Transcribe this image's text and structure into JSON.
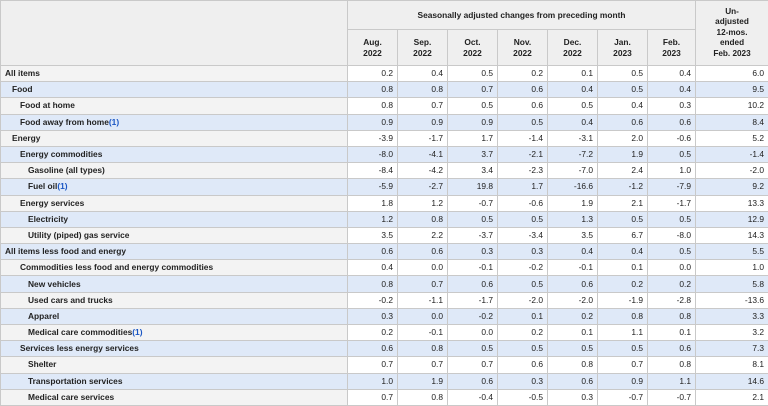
{
  "header": {
    "group_title": "Seasonally adjusted changes from preceding month",
    "months": [
      {
        "month": "Aug.",
        "year": "2022"
      },
      {
        "month": "Sep.",
        "year": "2022"
      },
      {
        "month": "Oct.",
        "year": "2022"
      },
      {
        "month": "Nov.",
        "year": "2022"
      },
      {
        "month": "Dec.",
        "year": "2022"
      },
      {
        "month": "Jan.",
        "year": "2023"
      },
      {
        "month": "Feb.",
        "year": "2023"
      }
    ],
    "unadjusted_lines": [
      "Un-",
      "adjusted",
      "12-mos.",
      "ended",
      "Feb. 2023"
    ]
  },
  "rows": [
    {
      "label": "All items",
      "footnote": "",
      "indent": 0,
      "values": [
        "0.2",
        "0.4",
        "0.5",
        "0.2",
        "0.1",
        "0.5",
        "0.4"
      ],
      "unadjusted": "6.0"
    },
    {
      "label": "Food",
      "footnote": "",
      "indent": 1,
      "values": [
        "0.8",
        "0.8",
        "0.7",
        "0.6",
        "0.4",
        "0.5",
        "0.4"
      ],
      "unadjusted": "9.5"
    },
    {
      "label": "Food at home",
      "footnote": "",
      "indent": 2,
      "values": [
        "0.8",
        "0.7",
        "0.5",
        "0.6",
        "0.5",
        "0.4",
        "0.3"
      ],
      "unadjusted": "10.2"
    },
    {
      "label": "Food away from home",
      "footnote": "(1)",
      "indent": 2,
      "values": [
        "0.9",
        "0.9",
        "0.9",
        "0.5",
        "0.4",
        "0.6",
        "0.6"
      ],
      "unadjusted": "8.4"
    },
    {
      "label": "Energy",
      "footnote": "",
      "indent": 1,
      "values": [
        "-3.9",
        "-1.7",
        "1.7",
        "-1.4",
        "-3.1",
        "2.0",
        "-0.6"
      ],
      "unadjusted": "5.2"
    },
    {
      "label": "Energy commodities",
      "footnote": "",
      "indent": 2,
      "values": [
        "-8.0",
        "-4.1",
        "3.7",
        "-2.1",
        "-7.2",
        "1.9",
        "0.5"
      ],
      "unadjusted": "-1.4"
    },
    {
      "label": "Gasoline (all types)",
      "footnote": "",
      "indent": 3,
      "values": [
        "-8.4",
        "-4.2",
        "3.4",
        "-2.3",
        "-7.0",
        "2.4",
        "1.0"
      ],
      "unadjusted": "-2.0"
    },
    {
      "label": "Fuel oil",
      "footnote": "(1)",
      "indent": 3,
      "values": [
        "-5.9",
        "-2.7",
        "19.8",
        "1.7",
        "-16.6",
        "-1.2",
        "-7.9"
      ],
      "unadjusted": "9.2"
    },
    {
      "label": "Energy services",
      "footnote": "",
      "indent": 2,
      "values": [
        "1.8",
        "1.2",
        "-0.7",
        "-0.6",
        "1.9",
        "2.1",
        "-1.7"
      ],
      "unadjusted": "13.3"
    },
    {
      "label": "Electricity",
      "footnote": "",
      "indent": 3,
      "values": [
        "1.2",
        "0.8",
        "0.5",
        "0.5",
        "1.3",
        "0.5",
        "0.5"
      ],
      "unadjusted": "12.9"
    },
    {
      "label": "Utility (piped) gas service",
      "footnote": "",
      "indent": 3,
      "values": [
        "3.5",
        "2.2",
        "-3.7",
        "-3.4",
        "3.5",
        "6.7",
        "-8.0"
      ],
      "unadjusted": "14.3"
    },
    {
      "label": "All items less food and energy",
      "footnote": "",
      "indent": 0,
      "values": [
        "0.6",
        "0.6",
        "0.3",
        "0.3",
        "0.4",
        "0.4",
        "0.5"
      ],
      "unadjusted": "5.5"
    },
    {
      "label": "Commodities less food and energy commodities",
      "footnote": "",
      "indent": 2,
      "values": [
        "0.4",
        "0.0",
        "-0.1",
        "-0.2",
        "-0.1",
        "0.1",
        "0.0"
      ],
      "unadjusted": "1.0"
    },
    {
      "label": "New vehicles",
      "footnote": "",
      "indent": 3,
      "values": [
        "0.8",
        "0.7",
        "0.6",
        "0.5",
        "0.6",
        "0.2",
        "0.2"
      ],
      "unadjusted": "5.8"
    },
    {
      "label": "Used cars and trucks",
      "footnote": "",
      "indent": 3,
      "values": [
        "-0.2",
        "-1.1",
        "-1.7",
        "-2.0",
        "-2.0",
        "-1.9",
        "-2.8"
      ],
      "unadjusted": "-13.6"
    },
    {
      "label": "Apparel",
      "footnote": "",
      "indent": 3,
      "values": [
        "0.3",
        "0.0",
        "-0.2",
        "0.1",
        "0.2",
        "0.8",
        "0.8"
      ],
      "unadjusted": "3.3"
    },
    {
      "label": "Medical care commodities",
      "footnote": "(1)",
      "indent": 3,
      "values": [
        "0.2",
        "-0.1",
        "0.0",
        "0.2",
        "0.1",
        "1.1",
        "0.1"
      ],
      "unadjusted": "3.2"
    },
    {
      "label": "Services less energy services",
      "footnote": "",
      "indent": 2,
      "values": [
        "0.6",
        "0.8",
        "0.5",
        "0.5",
        "0.5",
        "0.5",
        "0.6"
      ],
      "unadjusted": "7.3"
    },
    {
      "label": "Shelter",
      "footnote": "",
      "indent": 3,
      "values": [
        "0.7",
        "0.7",
        "0.7",
        "0.6",
        "0.8",
        "0.7",
        "0.8"
      ],
      "unadjusted": "8.1"
    },
    {
      "label": "Transportation services",
      "footnote": "",
      "indent": 3,
      "values": [
        "1.0",
        "1.9",
        "0.6",
        "0.3",
        "0.6",
        "0.9",
        "1.1"
      ],
      "unadjusted": "14.6"
    },
    {
      "label": "Medical care services",
      "footnote": "",
      "indent": 3,
      "values": [
        "0.7",
        "0.8",
        "-0.4",
        "-0.5",
        "0.3",
        "-0.7",
        "-0.7"
      ],
      "unadjusted": "2.1"
    }
  ],
  "colors": {
    "header_bg": "#efefef",
    "shaded_row": "#dfe9f8",
    "footnote_link": "#1a56c4",
    "grid": "#c9c9c9"
  }
}
